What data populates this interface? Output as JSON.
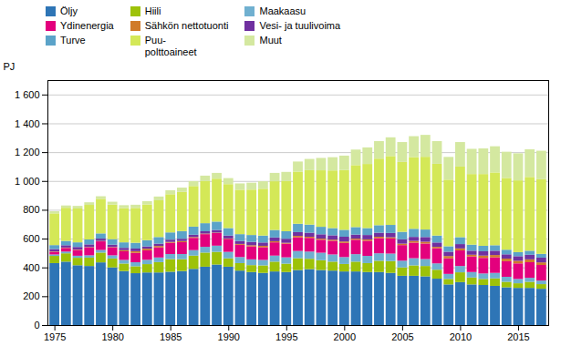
{
  "chart_data": {
    "type": "bar",
    "stacked": true,
    "ylabel": "PJ",
    "xlim": [
      1974.4,
      2017.6
    ],
    "ylim": [
      0,
      1700
    ],
    "xticks": [
      1975,
      1980,
      1985,
      1990,
      1995,
      2000,
      2005,
      2010,
      2015
    ],
    "yticks": [
      0,
      200,
      400,
      600,
      800,
      {
        "value": 1000,
        "label": "1 000"
      },
      {
        "value": 1200,
        "label": "1 200"
      },
      {
        "value": 1400,
        "label": "1 400"
      },
      {
        "value": 1600,
        "label": "1 600"
      }
    ],
    "grid": true,
    "legend": "top",
    "x": [
      1975,
      1976,
      1977,
      1978,
      1979,
      1980,
      1981,
      1982,
      1983,
      1984,
      1985,
      1986,
      1987,
      1988,
      1989,
      1990,
      1991,
      1992,
      1993,
      1994,
      1995,
      1996,
      1997,
      1998,
      1999,
      2000,
      2001,
      2002,
      2003,
      2004,
      2005,
      2006,
      2007,
      2008,
      2009,
      2010,
      2011,
      2012,
      2013,
      2014,
      2015,
      2016,
      2017
    ],
    "series": [
      {
        "name": "Öljy",
        "color": "#2E75B6",
        "values": [
          430,
          440,
          415,
          410,
          435,
          400,
          375,
          360,
          365,
          365,
          370,
          375,
          390,
          405,
          420,
          405,
          378,
          368,
          362,
          372,
          368,
          382,
          388,
          382,
          378,
          372,
          372,
          368,
          368,
          362,
          342,
          342,
          338,
          322,
          282,
          298,
          282,
          278,
          272,
          262,
          258,
          258,
          252
        ]
      },
      {
        "name": "Hiili",
        "color": "#9DC209",
        "values": [
          50,
          58,
          52,
          58,
          68,
          62,
          52,
          48,
          58,
          72,
          88,
          82,
          92,
          98,
          88,
          58,
          52,
          48,
          52,
          68,
          58,
          82,
          72,
          68,
          62,
          52,
          68,
          62,
          78,
          82,
          58,
          72,
          72,
          62,
          38,
          68,
          48,
          42,
          52,
          38,
          32,
          42,
          32
        ]
      },
      {
        "name": "Maakaasu",
        "color": "#70B0D0",
        "values": [
          10,
          12,
          14,
          16,
          18,
          22,
          25,
          28,
          30,
          32,
          35,
          36,
          38,
          40,
          43,
          45,
          42,
          40,
          38,
          42,
          44,
          50,
          50,
          52,
          50,
          48,
          52,
          50,
          52,
          52,
          47,
          50,
          48,
          44,
          35,
          44,
          38,
          38,
          38,
          35,
          30,
          28,
          25
        ]
      },
      {
        "name": "Ydinenergia",
        "color": "#E3007D",
        "values": [
          18,
          25,
          40,
          55,
          60,
          55,
          60,
          65,
          65,
          70,
          78,
          82,
          85,
          88,
          88,
          90,
          85,
          90,
          88,
          92,
          95,
          95,
          95,
          90,
          95,
          98,
          100,
          105,
          105,
          105,
          108,
          108,
          108,
          105,
          108,
          108,
          108,
          108,
          108,
          108,
          108,
          108,
          108
        ]
      },
      {
        "name": "Sähkön nettotuonti",
        "color": "#D07B2A",
        "values": [
          3,
          3,
          3,
          3,
          3,
          3,
          8,
          12,
          12,
          10,
          6,
          8,
          6,
          4,
          3,
          3,
          6,
          8,
          10,
          8,
          6,
          10,
          8,
          8,
          8,
          10,
          8,
          10,
          10,
          8,
          10,
          12,
          12,
          10,
          16,
          14,
          12,
          16,
          16,
          18,
          18,
          20,
          18
        ]
      },
      {
        "name": "Vesi- ja tuulivoima",
        "color": "#7030A0",
        "values": [
          16,
          16,
          18,
          18,
          16,
          16,
          16,
          18,
          16,
          16,
          16,
          16,
          16,
          16,
          18,
          20,
          20,
          23,
          23,
          26,
          28,
          26,
          28,
          30,
          30,
          33,
          28,
          30,
          28,
          30,
          30,
          28,
          33,
          30,
          30,
          30,
          28,
          30,
          30,
          30,
          32,
          32,
          33
        ]
      },
      {
        "name": "Turve",
        "color": "#5BA3C9",
        "values": [
          28,
          30,
          32,
          34,
          36,
          38,
          38,
          40,
          43,
          46,
          50,
          53,
          56,
          56,
          58,
          52,
          48,
          48,
          48,
          52,
          52,
          58,
          56,
          52,
          50,
          48,
          52,
          48,
          52,
          56,
          52,
          56,
          52,
          48,
          38,
          48,
          42,
          38,
          38,
          32,
          28,
          28,
          26
        ]
      },
      {
        "name": "Puu-\npolttoaineet",
        "color": "#D4E857",
        "values": [
          220,
          230,
          235,
          240,
          240,
          240,
          238,
          242,
          248,
          255,
          265,
          272,
          282,
          292,
          298,
          305,
          308,
          315,
          325,
          338,
          348,
          362,
          378,
          392,
          400,
          415,
          430,
          445,
          462,
          478,
          485,
          498,
          505,
          498,
          462,
          490,
          490,
          498,
          505,
          498,
          498,
          512,
          518
        ]
      },
      {
        "name": "Muut",
        "color": "#D4E8A0",
        "values": [
          15,
          16,
          18,
          18,
          18,
          20,
          20,
          22,
          23,
          26,
          28,
          30,
          34,
          38,
          40,
          42,
          44,
          48,
          52,
          58,
          64,
          70,
          78,
          86,
          92,
          100,
          108,
          115,
          122,
          130,
          138,
          145,
          152,
          158,
          158,
          170,
          175,
          178,
          182,
          182,
          188,
          192,
          198
        ]
      }
    ]
  }
}
